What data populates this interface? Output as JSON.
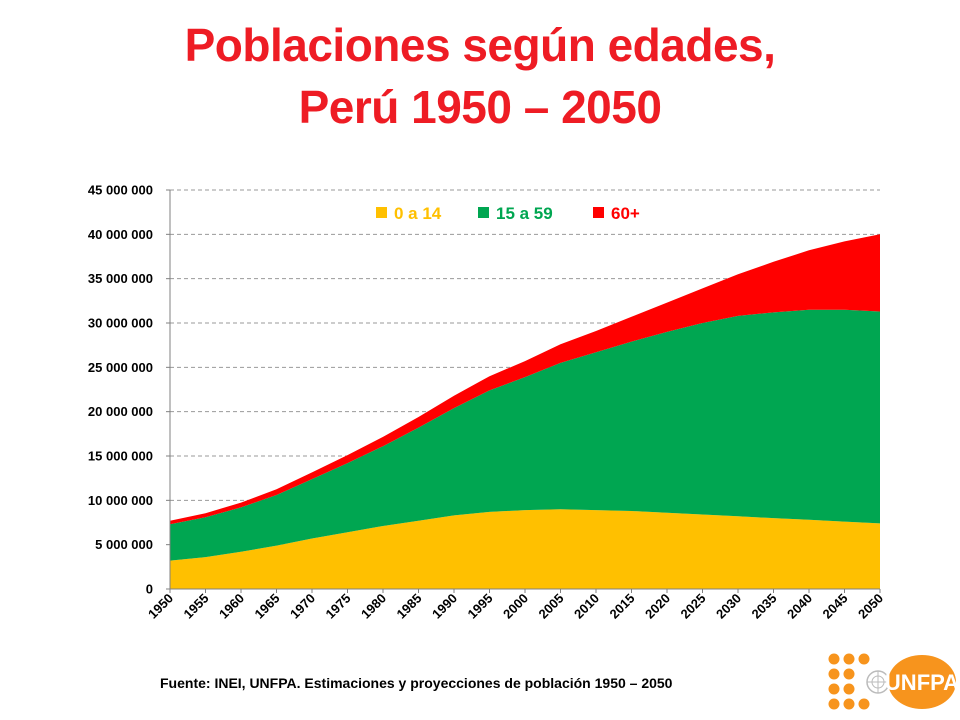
{
  "header": {
    "title_line1": "Poblaciones según edades,",
    "title_line2": "Perú 1950 – 2050"
  },
  "footer": {
    "source": "Fuente: INEI, UNFPA. Estimaciones y proyecciones de población 1950 – 2050"
  },
  "logo": {
    "text": "UNFPA",
    "color": "#f7941d"
  },
  "chart_data": {
    "type": "area",
    "stacked": true,
    "title": "",
    "xlabel": "",
    "ylabel": "",
    "ylim": [
      0,
      45000000
    ],
    "yticks": [
      0,
      5000000,
      10000000,
      15000000,
      20000000,
      25000000,
      30000000,
      35000000,
      40000000,
      45000000
    ],
    "ytick_labels": [
      "0",
      "5 000 000",
      "10 000 000",
      "15 000 000",
      "20 000 000",
      "25 000 000",
      "30 000 000",
      "35 000 000",
      "40 000 000",
      "45 000 000"
    ],
    "grid": "horizontal-dashed",
    "legend_position": "top-center",
    "x": [
      "1950",
      "1955",
      "1960",
      "1965",
      "1970",
      "1975",
      "1980",
      "1985",
      "1990",
      "1995",
      "2000",
      "2005",
      "2010",
      "2015",
      "2020",
      "2025",
      "2030",
      "2035",
      "2040",
      "2045",
      "2050"
    ],
    "series": [
      {
        "name": "0 a 14",
        "color": "#ffc000",
        "values": [
          3200000,
          3600000,
          4200000,
          4900000,
          5700000,
          6400000,
          7100000,
          7700000,
          8300000,
          8700000,
          8900000,
          9000000,
          8900000,
          8800000,
          8600000,
          8400000,
          8200000,
          8000000,
          7800000,
          7600000,
          7400000
        ]
      },
      {
        "name": "15 a 59",
        "color": "#00a651",
        "values": [
          4100000,
          4500000,
          5000000,
          5700000,
          6700000,
          7800000,
          9000000,
          10500000,
          12100000,
          13700000,
          15000000,
          16500000,
          17800000,
          19100000,
          20400000,
          21600000,
          22600000,
          23200000,
          23700000,
          23900000,
          23900000
        ]
      },
      {
        "name": "60+",
        "color": "#ff0000",
        "values": [
          400000,
          450000,
          550000,
          650000,
          750000,
          900000,
          1050000,
          1200000,
          1400000,
          1600000,
          1800000,
          2100000,
          2400000,
          2800000,
          3300000,
          3900000,
          4700000,
          5700000,
          6700000,
          7700000,
          8700000
        ]
      }
    ]
  }
}
